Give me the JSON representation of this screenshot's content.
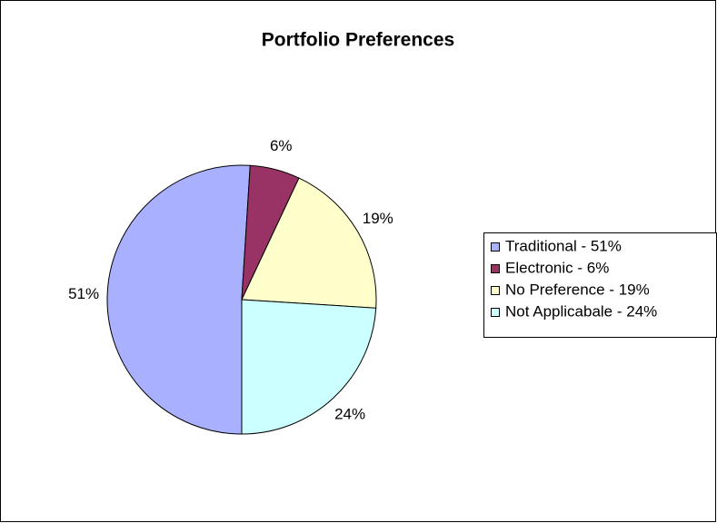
{
  "chart_data": {
    "type": "pie",
    "title": "Portfolio Preferences",
    "categories": [
      "Traditional - 51%",
      "Electronic - 6%",
      "No Preference - 19%",
      "Not Applicabale - 24%"
    ],
    "values": [
      51,
      6,
      19,
      24
    ],
    "value_labels": [
      "51%",
      "6%",
      "19%",
      "24%"
    ],
    "colors": [
      "#a9b1ff",
      "#993366",
      "#ffffcc",
      "#ccffff"
    ],
    "legend": "right"
  }
}
